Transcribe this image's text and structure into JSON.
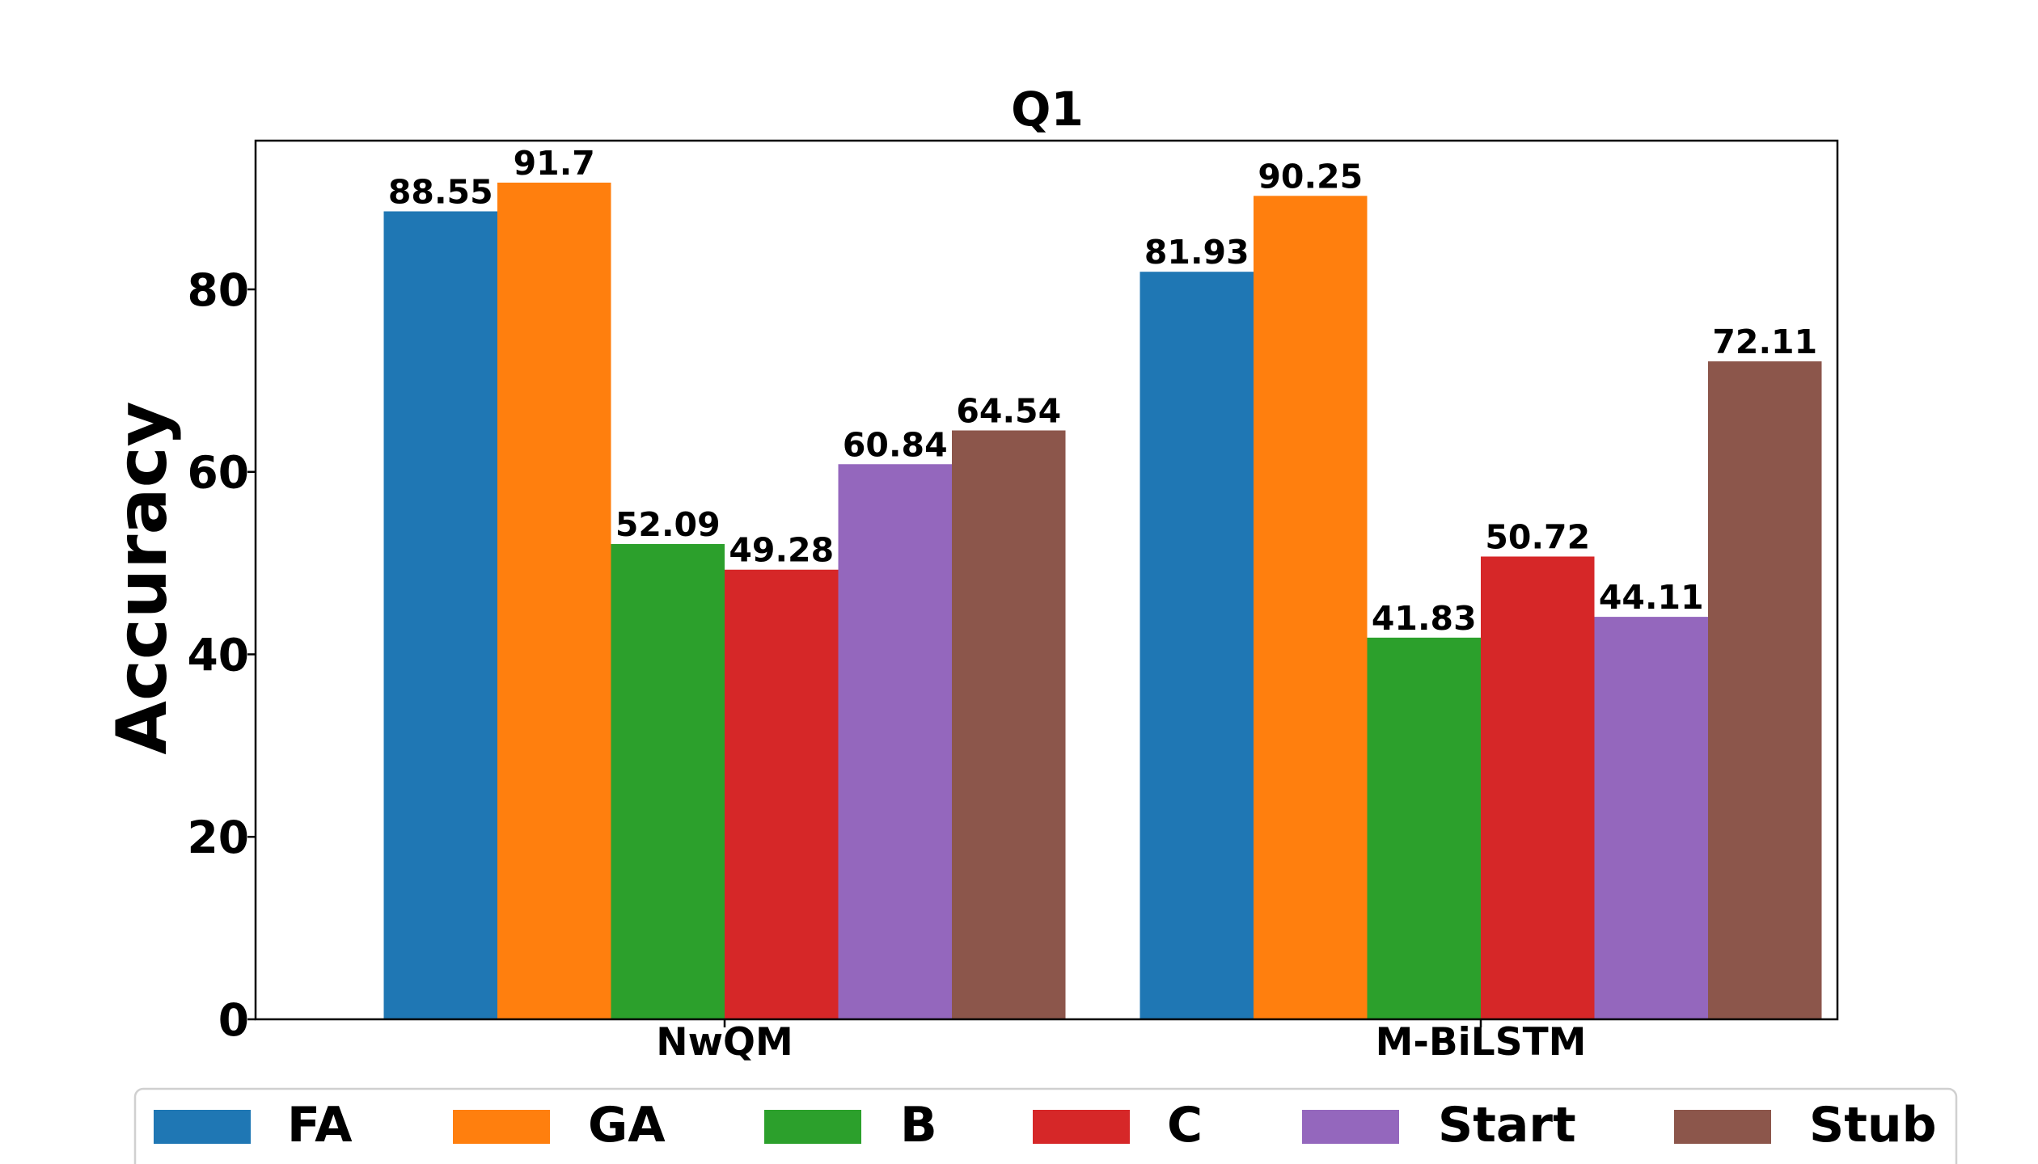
{
  "chart_data": {
    "type": "bar",
    "title": "Q1",
    "xlabel": "",
    "ylabel": "Accuracy",
    "categories": [
      "NwQM",
      "M-BiLSTM"
    ],
    "series": [
      {
        "name": "FA",
        "values": [
          88.55,
          81.93
        ],
        "color": "#1f77b4"
      },
      {
        "name": "GA",
        "values": [
          91.7,
          90.25
        ],
        "color": "#ff7f0e"
      },
      {
        "name": "B",
        "values": [
          52.09,
          41.83
        ],
        "color": "#2ca02c"
      },
      {
        "name": "C",
        "values": [
          49.28,
          50.72
        ],
        "color": "#d62728"
      },
      {
        "name": "Start",
        "values": [
          60.84,
          44.11
        ],
        "color": "#9467bd"
      },
      {
        "name": "Stub",
        "values": [
          64.54,
          72.11
        ],
        "color": "#8c564b"
      }
    ],
    "yticks": [
      0,
      20,
      40,
      60,
      80
    ],
    "ylim": [
      0,
      96.3
    ],
    "grid": false,
    "legend": "bottom"
  }
}
